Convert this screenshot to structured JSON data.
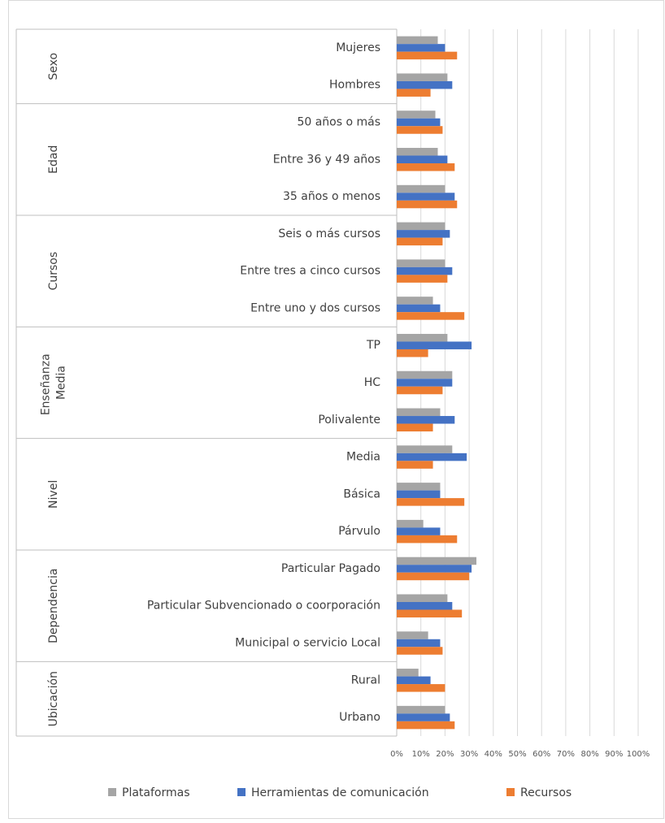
{
  "chart_data": {
    "type": "bar",
    "orientation": "horizontal",
    "groups": [
      {
        "name": "Sexo",
        "categories": [
          "Mujeres",
          "Hombres"
        ]
      },
      {
        "name": "Edad",
        "categories": [
          "50 años o más",
          "Entre 36 y 49 años",
          "35 años o menos"
        ]
      },
      {
        "name": "Cursos",
        "categories": [
          "Seis o más cursos",
          "Entre tres a cinco cursos",
          "Entre uno y dos cursos"
        ]
      },
      {
        "name": "Enseñanza Media",
        "categories": [
          "TP",
          "HC",
          "Polivalente"
        ]
      },
      {
        "name": "Nivel",
        "categories": [
          "Media",
          "Básica",
          "Párvulo"
        ]
      },
      {
        "name": "Dependencia",
        "categories": [
          "Particular Pagado",
          "Particular Subvencionado o coorporación",
          "Municipal o servicio Local"
        ]
      },
      {
        "name": "Ubicación",
        "categories": [
          "Rural",
          "Urbano"
        ]
      }
    ],
    "series": [
      {
        "name": "Plataformas",
        "color": "#a5a5a5",
        "values": [
          17,
          21,
          16,
          17,
          20,
          20,
          20,
          15,
          21,
          23,
          18,
          23,
          18,
          11,
          33,
          21,
          13,
          9,
          20
        ]
      },
      {
        "name": "Herramientas de comunicación",
        "color": "#4472c4",
        "values": [
          20,
          23,
          18,
          21,
          24,
          22,
          23,
          18,
          31,
          23,
          24,
          29,
          18,
          18,
          31,
          23,
          18,
          14,
          22
        ]
      },
      {
        "name": "Recursos",
        "color": "#ed7d31",
        "values": [
          25,
          14,
          19,
          24,
          25,
          19,
          21,
          28,
          13,
          19,
          15,
          15,
          28,
          25,
          30,
          27,
          19,
          20,
          24
        ]
      }
    ],
    "xlim": [
      0,
      100
    ],
    "xticks": [
      {
        "value": 0,
        "label": "0%"
      },
      {
        "value": 10,
        "label": "10%"
      },
      {
        "value": 20,
        "label": "20%"
      },
      {
        "value": 30,
        "label": "30%"
      },
      {
        "value": 40,
        "label": "40%"
      },
      {
        "value": 50,
        "label": "50%"
      },
      {
        "value": 60,
        "label": "60%"
      },
      {
        "value": 70,
        "label": "70%"
      },
      {
        "value": 80,
        "label": "80%"
      },
      {
        "value": 90,
        "label": "90%"
      },
      {
        "value": 100,
        "label": "100%"
      }
    ],
    "grid": true,
    "legend": "bottom"
  }
}
